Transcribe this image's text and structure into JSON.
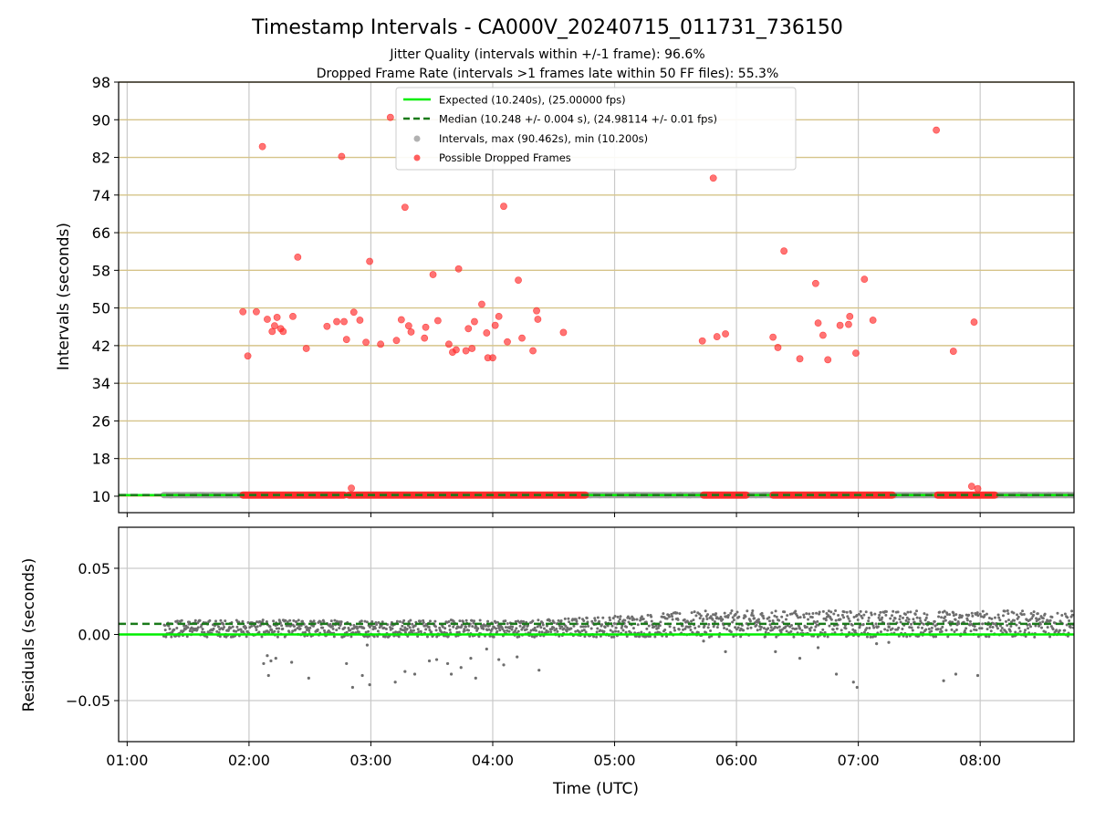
{
  "chart_data": [
    {
      "type": "scatter",
      "title": "Timestamp Intervals - CA000V_20240715_011731_736150",
      "subtitle_lines": [
        "Jitter Quality (intervals within +/-1 frame): 96.6%",
        "Dropped Frame Rate (intervals >1 frames late within 50 FF files): 55.3%"
      ],
      "xlabel": "",
      "ylabel": "Intervals (seconds)",
      "x_unit": "UTC hours",
      "xlim": [
        0.93,
        8.77
      ],
      "ylim": [
        6.5,
        98
      ],
      "yticks": [
        10,
        18,
        26,
        34,
        42,
        50,
        58,
        66,
        74,
        82,
        90,
        98
      ],
      "xticks": [
        1,
        2,
        3,
        4,
        5,
        6,
        7,
        8
      ],
      "grid": true,
      "legend_position": "upper center",
      "legend": [
        "Expected (10.240s), (25.00000 fps)",
        "Median (10.248 +/- 0.004 s), (24.98114 +/- 0.01 fps)",
        "Intervals, max (90.462s), min (10.200s)",
        "Possible Dropped Frames"
      ],
      "expected_line": 10.24,
      "median_line": 10.248,
      "baseline_series": {
        "name": "Intervals, max (90.462s), min (10.200s)",
        "x_start": 1.3,
        "x_end": 8.77,
        "y": 10.24
      },
      "dropped_bands": [
        {
          "x_start": 1.95,
          "x_end": 2.78,
          "y": 10.24
        },
        {
          "x_start": 2.82,
          "x_end": 4.76,
          "y": 10.24
        },
        {
          "x_start": 5.73,
          "x_end": 6.08,
          "y": 10.24
        },
        {
          "x_start": 6.3,
          "x_end": 7.28,
          "y": 10.24
        },
        {
          "x_start": 7.65,
          "x_end": 8.12,
          "y": 10.24
        }
      ],
      "dropped_points": [
        [
          1.95,
          49.2
        ],
        [
          1.99,
          39.8
        ],
        [
          2.06,
          49.2
        ],
        [
          2.11,
          84.3
        ],
        [
          2.15,
          47.6
        ],
        [
          2.19,
          45.0
        ],
        [
          2.21,
          46.2
        ],
        [
          2.23,
          48.0
        ],
        [
          2.26,
          45.6
        ],
        [
          2.28,
          45.0
        ],
        [
          2.36,
          48.2
        ],
        [
          2.4,
          60.8
        ],
        [
          2.47,
          41.4
        ],
        [
          2.64,
          46.1
        ],
        [
          2.72,
          47.1
        ],
        [
          2.76,
          82.2
        ],
        [
          2.78,
          47.1
        ],
        [
          2.8,
          43.3
        ],
        [
          2.84,
          11.7
        ],
        [
          2.86,
          49.1
        ],
        [
          2.91,
          47.4
        ],
        [
          2.96,
          42.7
        ],
        [
          2.99,
          59.9
        ],
        [
          3.08,
          42.3
        ],
        [
          3.16,
          90.5
        ],
        [
          3.21,
          43.1
        ],
        [
          3.25,
          47.5
        ],
        [
          3.28,
          71.4
        ],
        [
          3.31,
          46.2
        ],
        [
          3.33,
          44.9
        ],
        [
          3.44,
          43.6
        ],
        [
          3.45,
          45.9
        ],
        [
          3.51,
          57.1
        ],
        [
          3.55,
          47.3
        ],
        [
          3.64,
          42.3
        ],
        [
          3.67,
          40.6
        ],
        [
          3.7,
          41.1
        ],
        [
          3.72,
          58.3
        ],
        [
          3.78,
          40.9
        ],
        [
          3.8,
          45.6
        ],
        [
          3.83,
          41.4
        ],
        [
          3.85,
          47.1
        ],
        [
          3.91,
          50.8
        ],
        [
          3.95,
          44.7
        ],
        [
          3.96,
          39.4
        ],
        [
          4.0,
          39.4
        ],
        [
          4.02,
          46.3
        ],
        [
          4.05,
          48.2
        ],
        [
          4.09,
          71.6
        ],
        [
          4.12,
          42.8
        ],
        [
          4.21,
          55.9
        ],
        [
          4.24,
          43.6
        ],
        [
          4.33,
          40.9
        ],
        [
          4.36,
          49.4
        ],
        [
          4.37,
          47.6
        ],
        [
          4.58,
          44.8
        ],
        [
          5.72,
          43.0
        ],
        [
          5.81,
          77.6
        ],
        [
          5.84,
          43.9
        ],
        [
          5.91,
          44.5
        ],
        [
          6.3,
          43.8
        ],
        [
          6.34,
          41.6
        ],
        [
          6.39,
          62.1
        ],
        [
          6.52,
          39.2
        ],
        [
          6.65,
          55.2
        ],
        [
          6.67,
          46.8
        ],
        [
          6.71,
          44.2
        ],
        [
          6.75,
          39.0
        ],
        [
          6.85,
          46.3
        ],
        [
          6.92,
          46.5
        ],
        [
          6.93,
          48.2
        ],
        [
          6.98,
          40.4
        ],
        [
          7.05,
          56.1
        ],
        [
          7.12,
          47.4
        ],
        [
          7.64,
          87.8
        ],
        [
          7.78,
          40.8
        ],
        [
          7.93,
          12.1
        ],
        [
          7.95,
          47.0
        ],
        [
          7.98,
          11.6
        ]
      ]
    },
    {
      "type": "scatter",
      "title": "",
      "xlabel": "Time (UTC)",
      "ylabel": "Residuals (seconds)",
      "x_unit": "UTC hours",
      "xlim": [
        0.93,
        8.77
      ],
      "ylim": [
        -0.081,
        0.081
      ],
      "yticks": [
        -0.05,
        0.0,
        0.05
      ],
      "ytick_labels": [
        "−0.05",
        "0.00",
        "0.05"
      ],
      "xticks": [
        1,
        2,
        3,
        4,
        5,
        6,
        7,
        8
      ],
      "xtick_labels": [
        "01:00",
        "02:00",
        "03:00",
        "04:00",
        "05:00",
        "06:00",
        "07:00",
        "08:00"
      ],
      "grid": true,
      "expected_line": 0.0,
      "median_line": 0.008,
      "residual_band": {
        "x_start": 1.3,
        "x_end": 8.77,
        "low": -0.002,
        "high": 0.018
      },
      "outlier_points": [
        [
          2.12,
          -0.022
        ],
        [
          2.15,
          -0.016
        ],
        [
          2.18,
          -0.02
        ],
        [
          2.22,
          -0.018
        ],
        [
          2.16,
          -0.031
        ],
        [
          2.35,
          -0.021
        ],
        [
          2.49,
          -0.033
        ],
        [
          2.8,
          -0.022
        ],
        [
          2.85,
          -0.04
        ],
        [
          2.93,
          -0.031
        ],
        [
          2.99,
          -0.038
        ],
        [
          2.97,
          -0.008
        ],
        [
          3.2,
          -0.036
        ],
        [
          3.28,
          -0.028
        ],
        [
          3.36,
          -0.03
        ],
        [
          3.48,
          -0.02
        ],
        [
          3.54,
          -0.019
        ],
        [
          3.63,
          -0.022
        ],
        [
          3.66,
          -0.03
        ],
        [
          3.74,
          -0.025
        ],
        [
          3.82,
          -0.018
        ],
        [
          3.86,
          -0.033
        ],
        [
          3.95,
          -0.011
        ],
        [
          4.05,
          -0.019
        ],
        [
          4.09,
          -0.023
        ],
        [
          4.2,
          -0.017
        ],
        [
          4.38,
          -0.027
        ],
        [
          5.73,
          -0.005
        ],
        [
          5.91,
          -0.013
        ],
        [
          6.32,
          -0.013
        ],
        [
          6.52,
          -0.018
        ],
        [
          6.67,
          -0.01
        ],
        [
          6.82,
          -0.03
        ],
        [
          6.96,
          -0.036
        ],
        [
          6.99,
          -0.04
        ],
        [
          7.15,
          -0.007
        ],
        [
          7.25,
          -0.006
        ],
        [
          7.7,
          -0.035
        ],
        [
          7.8,
          -0.03
        ],
        [
          7.98,
          -0.031
        ]
      ]
    }
  ],
  "colors": {
    "expected": "#00ee00",
    "median": "#1a7a1a",
    "dropped": "#ff2a2a",
    "interval": "#9e9e9e",
    "residual": "#6e6e6e",
    "ygrid_top": "#d6c48a",
    "grid": "#c9c9c9"
  }
}
